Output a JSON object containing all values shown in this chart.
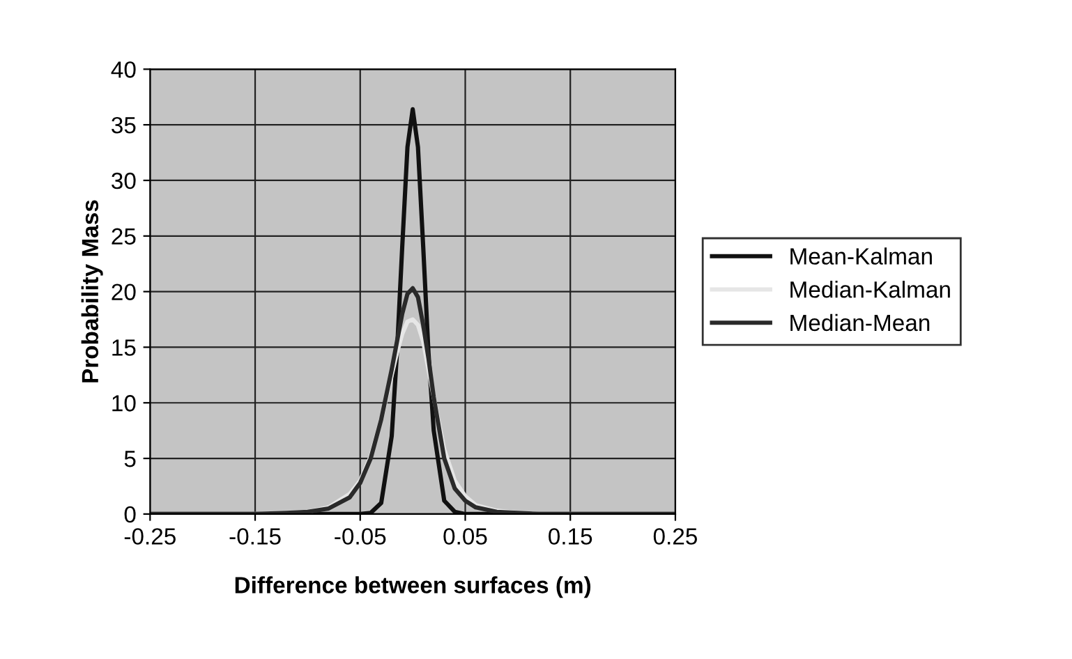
{
  "chart_data": {
    "type": "line",
    "xlabel": "Difference between surfaces (m)",
    "ylabel": "Probability Mass",
    "xlim": [
      -0.25,
      0.25
    ],
    "xticks": [
      -0.25,
      -0.15,
      -0.05,
      0.05,
      0.15,
      0.25
    ],
    "ylim": [
      0,
      40
    ],
    "yticks": [
      0,
      5,
      10,
      15,
      20,
      25,
      30,
      35,
      40
    ],
    "grid": true,
    "legend": "right",
    "marker": "none",
    "line_style": "solid",
    "x": [
      -0.25,
      -0.2,
      -0.15,
      -0.12,
      -0.1,
      -0.08,
      -0.06,
      -0.05,
      -0.04,
      -0.03,
      -0.02,
      -0.015,
      -0.01,
      -0.005,
      0,
      0.005,
      0.01,
      0.015,
      0.02,
      0.03,
      0.04,
      0.05,
      0.06,
      0.08,
      0.1,
      0.12,
      0.15,
      0.2,
      0.25
    ],
    "series": [
      {
        "name": "Mean-Kalman",
        "color": "#111111",
        "values": [
          0,
          0,
          0,
          0,
          0,
          0,
          0,
          0,
          0.1,
          1,
          7,
          14.5,
          24,
          33,
          36.4,
          33,
          24,
          14.5,
          7.5,
          1.2,
          0.2,
          0,
          0,
          0,
          0,
          0,
          0,
          0,
          0
        ]
      },
      {
        "name": "Median-Kalman",
        "color": "#e6e6e6",
        "values": [
          0,
          0,
          0,
          0.1,
          0.2,
          0.6,
          1.8,
          3,
          5.2,
          8.5,
          12.5,
          14.5,
          16.2,
          17.3,
          17.5,
          17,
          15.5,
          13,
          10.5,
          5.8,
          3,
          1.6,
          0.8,
          0.3,
          0.1,
          0,
          0,
          0,
          0
        ]
      },
      {
        "name": "Median-Mean",
        "color": "#2a2a2a",
        "values": [
          0,
          0,
          0,
          0.1,
          0.2,
          0.5,
          1.5,
          2.8,
          5,
          8.5,
          13,
          15.5,
          18,
          19.8,
          20.3,
          19.5,
          17,
          14,
          10.5,
          5,
          2.3,
          1.2,
          0.6,
          0.2,
          0.1,
          0,
          0,
          0,
          0
        ]
      }
    ]
  }
}
